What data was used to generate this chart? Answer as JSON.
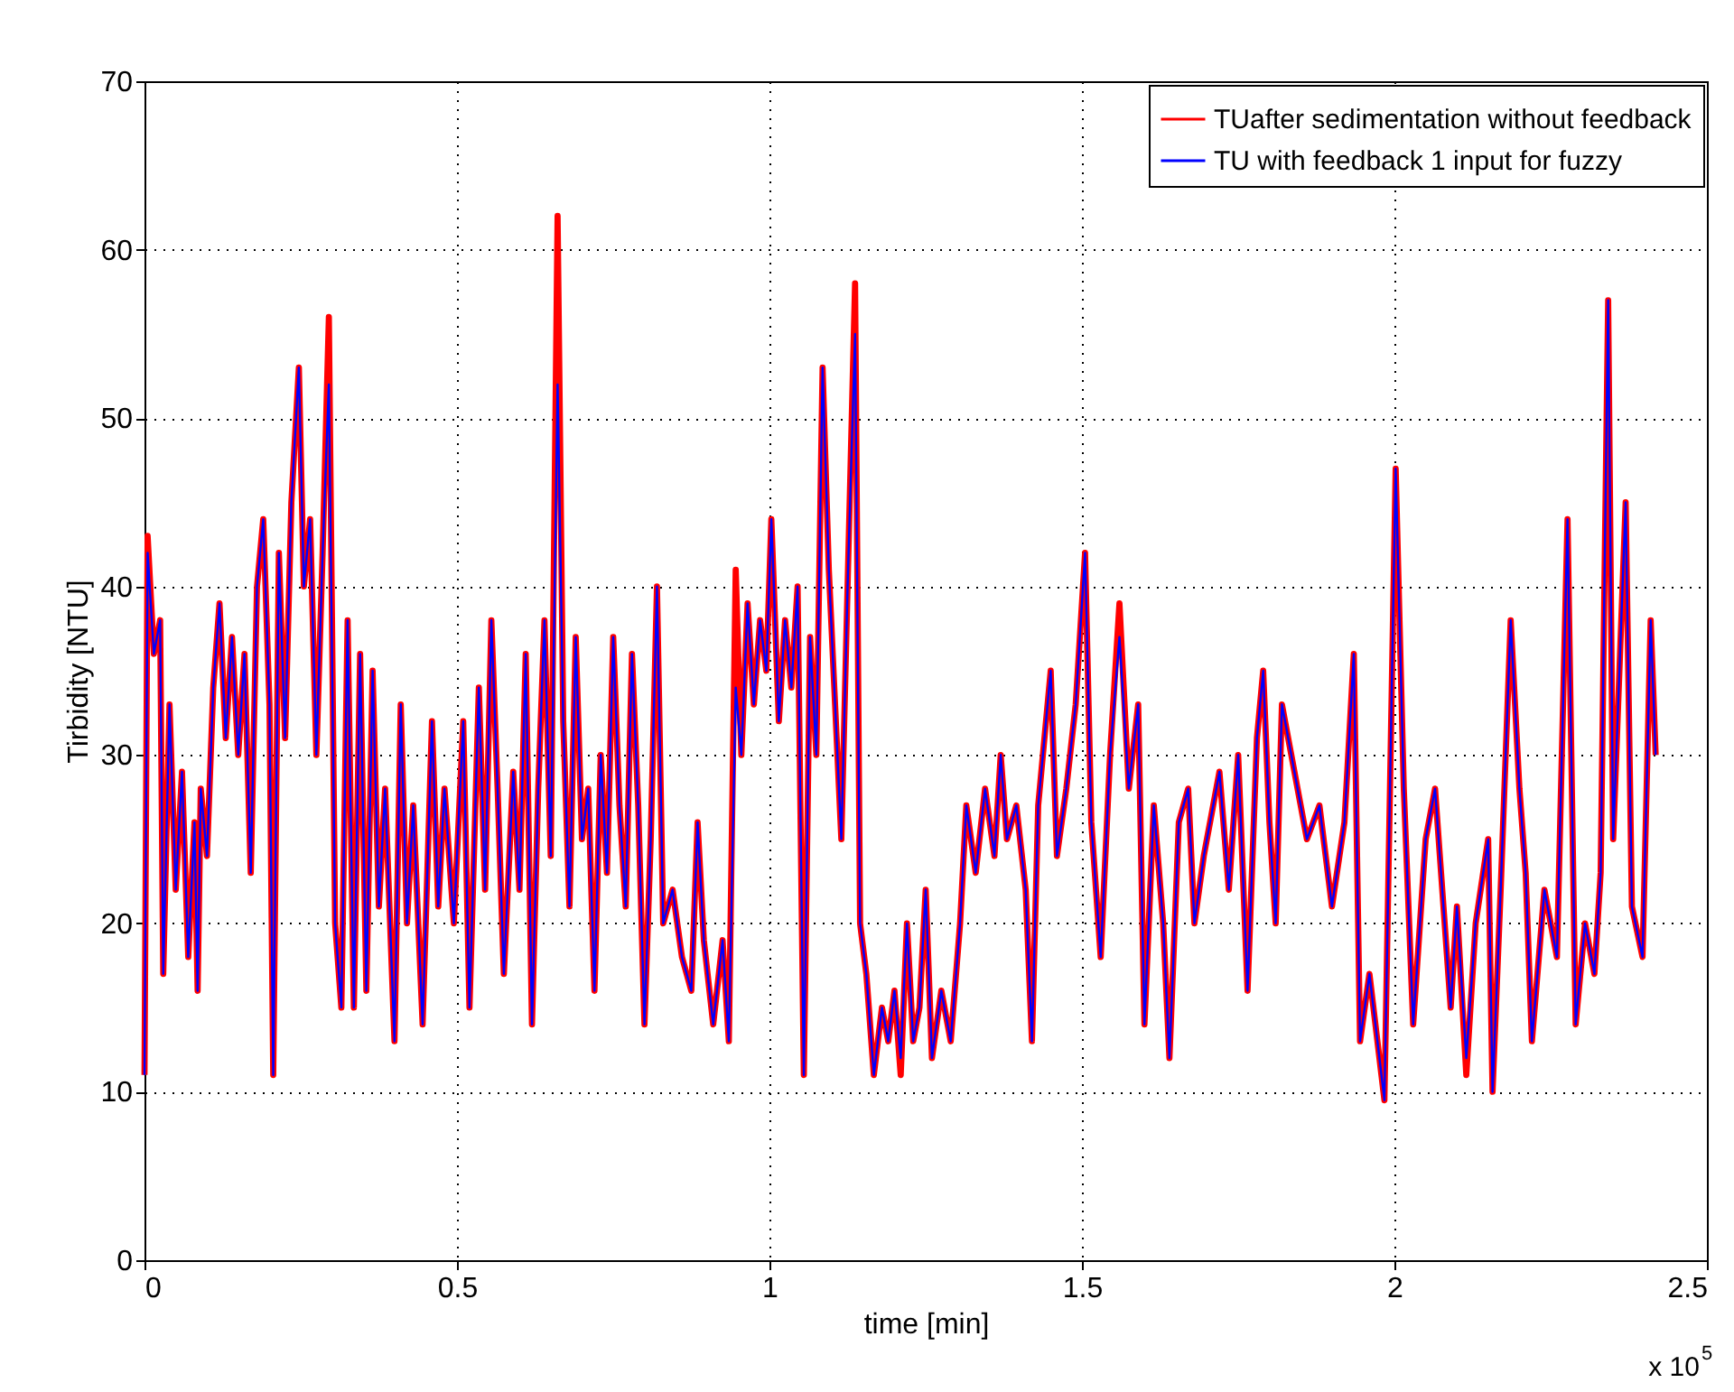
{
  "chart_data": {
    "type": "line",
    "xlabel": "time [min]",
    "ylabel": "Tirbidity [NTU]",
    "annotations": [
      "x 10$^{5}$"
    ],
    "x": [
      0,
      0.005,
      0.015,
      0.025,
      0.03,
      0.04,
      0.05,
      0.06,
      0.07,
      0.08,
      0.085,
      0.09,
      0.1,
      0.11,
      0.12,
      0.13,
      0.14,
      0.15,
      0.16,
      0.17,
      0.18,
      0.19,
      0.2,
      0.206,
      0.215,
      0.225,
      0.235,
      0.247,
      0.255,
      0.265,
      0.275,
      0.285,
      0.295,
      0.305,
      0.315,
      0.325,
      0.335,
      0.345,
      0.355,
      0.365,
      0.375,
      0.385,
      0.4,
      0.41,
      0.42,
      0.43,
      0.445,
      0.46,
      0.47,
      0.48,
      0.495,
      0.51,
      0.52,
      0.535,
      0.545,
      0.555,
      0.565,
      0.575,
      0.59,
      0.6,
      0.61,
      0.62,
      0.63,
      0.64,
      0.65,
      0.661,
      0.67,
      0.68,
      0.69,
      0.7,
      0.71,
      0.72,
      0.73,
      0.74,
      0.75,
      0.76,
      0.77,
      0.78,
      0.79,
      0.8,
      0.81,
      0.82,
      0.83,
      0.845,
      0.86,
      0.875,
      0.885,
      0.895,
      0.91,
      0.925,
      0.935,
      0.946,
      0.955,
      0.965,
      0.975,
      0.985,
      0.995,
      1.003,
      1.015,
      1.025,
      1.035,
      1.045,
      1.055,
      1.065,
      1.075,
      1.085,
      1.095,
      1.105,
      1.115,
      1.125,
      1.137,
      1.145,
      1.155,
      1.167,
      1.18,
      1.19,
      1.2,
      1.21,
      1.22,
      1.23,
      1.24,
      1.25,
      1.26,
      1.275,
      1.29,
      1.305,
      1.315,
      1.33,
      1.345,
      1.36,
      1.37,
      1.38,
      1.395,
      1.41,
      1.42,
      1.43,
      1.45,
      1.46,
      1.475,
      1.49,
      1.505,
      1.515,
      1.53,
      1.545,
      1.56,
      1.575,
      1.59,
      1.6,
      1.615,
      1.63,
      1.64,
      1.655,
      1.67,
      1.68,
      1.695,
      1.72,
      1.735,
      1.75,
      1.765,
      1.78,
      1.79,
      1.8,
      1.81,
      1.82,
      1.84,
      1.86,
      1.88,
      1.9,
      1.92,
      1.935,
      1.945,
      1.96,
      1.984,
      2.002,
      2.015,
      2.03,
      2.05,
      2.065,
      2.09,
      2.1,
      2.115,
      2.13,
      2.15,
      2.157,
      2.17,
      2.186,
      2.2,
      2.21,
      2.22,
      2.24,
      2.26,
      2.277,
      2.29,
      2.305,
      2.32,
      2.33,
      2.342,
      2.35,
      2.37,
      2.38,
      2.397,
      2.41,
      2.418
    ],
    "series": [
      {
        "name": "TUafter sedimentation without feedback",
        "color": "#ff0000",
        "values": [
          11,
          43,
          36,
          38,
          17,
          33,
          22,
          29,
          18,
          26,
          16,
          28,
          24,
          34,
          39,
          31,
          37,
          30,
          36,
          23,
          40,
          44,
          33,
          11,
          42,
          31,
          45,
          53,
          40,
          44,
          30,
          42,
          56,
          20,
          15,
          38,
          15,
          36,
          16,
          35,
          21,
          28,
          13,
          33,
          20,
          27,
          14,
          32,
          21,
          28,
          20,
          32,
          15,
          34,
          22,
          38,
          28,
          17,
          29,
          22,
          36,
          14,
          28,
          38,
          24,
          62,
          32,
          21,
          37,
          25,
          28,
          16,
          30,
          23,
          37,
          27,
          21,
          36,
          27,
          14,
          25,
          40,
          20,
          22,
          18,
          16,
          26,
          19,
          14,
          19,
          13,
          41,
          30,
          39,
          33,
          38,
          35,
          44,
          32,
          38,
          34,
          40,
          11,
          37,
          30,
          53,
          41,
          33,
          25,
          40,
          58,
          20,
          17,
          11,
          15,
          13,
          16,
          11,
          20,
          13,
          15,
          22,
          12,
          16,
          13,
          20,
          27,
          23,
          28,
          24,
          30,
          25,
          27,
          22,
          13,
          27,
          35,
          24,
          28,
          33,
          42,
          26,
          18,
          30,
          39,
          28,
          33,
          14,
          27,
          20,
          12,
          26,
          28,
          20,
          24,
          29,
          22,
          30,
          16,
          31,
          35,
          26,
          20,
          33,
          29,
          25,
          27,
          21,
          26,
          36,
          13,
          17,
          9.5,
          47,
          28,
          14,
          25,
          28,
          15,
          21,
          11,
          20,
          25,
          10,
          22,
          38,
          28,
          23,
          13,
          22,
          18,
          44,
          14,
          20,
          17,
          23,
          57,
          25,
          45,
          21,
          18,
          38,
          30
        ]
      },
      {
        "name": "TU with feedback 1 input for fuzzy",
        "color": "#0000ff",
        "values": [
          11,
          42,
          36,
          38,
          17,
          33,
          22,
          29,
          18,
          26,
          16,
          28,
          24,
          34,
          39,
          31,
          37,
          30,
          36,
          23,
          40,
          44,
          33,
          11,
          42,
          31,
          45,
          53,
          40,
          44,
          30,
          42,
          52,
          20,
          15,
          38,
          15,
          36,
          16,
          35,
          21,
          28,
          13,
          33,
          20,
          27,
          14,
          32,
          21,
          28,
          20,
          32,
          15,
          34,
          22,
          38,
          28,
          17,
          29,
          22,
          36,
          14,
          28,
          38,
          24,
          52,
          32,
          21,
          37,
          25,
          28,
          16,
          30,
          23,
          37,
          27,
          21,
          36,
          27,
          14,
          25,
          40,
          20,
          22,
          18,
          16,
          26,
          19,
          14,
          19,
          13,
          34,
          30,
          39,
          33,
          38,
          35,
          44,
          32,
          38,
          34,
          40,
          11,
          37,
          30,
          53,
          41,
          33,
          25,
          40,
          55,
          20,
          17,
          11,
          15,
          13,
          16,
          12,
          20,
          13,
          15,
          22,
          12,
          16,
          13,
          20,
          27,
          23,
          28,
          24,
          30,
          25,
          27,
          22,
          13,
          27,
          35,
          24,
          28,
          33,
          42,
          26,
          18,
          30,
          37,
          28,
          33,
          14,
          27,
          20,
          12,
          26,
          28,
          20,
          24,
          29,
          22,
          30,
          16,
          31,
          35,
          26,
          20,
          33,
          29,
          25,
          27,
          21,
          26,
          36,
          13,
          17,
          9.5,
          47,
          28,
          14,
          25,
          28,
          15,
          21,
          12,
          20,
          25,
          10,
          22,
          38,
          28,
          23,
          13,
          22,
          18,
          44,
          14,
          20,
          17,
          23,
          57,
          25,
          45,
          21,
          18,
          38,
          30
        ]
      }
    ],
    "xlim": [
      0,
      2.5
    ],
    "xticks": [
      0,
      0.5,
      1,
      1.5,
      2,
      2.5
    ],
    "ylim": [
      0,
      70
    ],
    "yticks": [
      0,
      10,
      20,
      30,
      40,
      50,
      60,
      70
    ],
    "grid": true,
    "legend": "top right",
    "line_style": "solid",
    "marker": "none"
  }
}
